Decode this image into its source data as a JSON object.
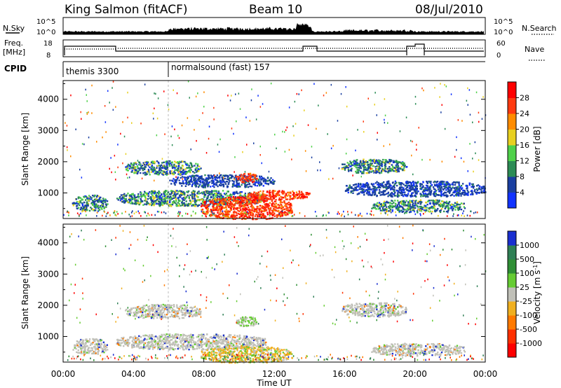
{
  "header": {
    "station": "King Salmon (fitACF)",
    "beam": "Beam 10",
    "date": "08/Jul/2010"
  },
  "panel_labels": {
    "nsky": "N.Sky",
    "freq_line1": "Freq.",
    "freq_line2": "[MHz]",
    "cpid": "CPID",
    "nsearch": "N.Search",
    "nave": "Nave"
  },
  "ticks": {
    "noise_left": [
      "10^5",
      "10^0"
    ],
    "noise_right": [
      "10^5",
      "10^0"
    ],
    "freq_left": [
      "18",
      "8"
    ],
    "nave_right": [
      "60",
      "0"
    ]
  },
  "cpid": {
    "prog1": "themis 3300",
    "prog2": "normalsound (fast) 157"
  },
  "chart_data": [
    {
      "type": "heatmap",
      "name": "power",
      "ylabel": "Slant Range [km]",
      "xlim": [
        "00:00",
        "24:00"
      ],
      "ylim": [
        180,
        4600
      ],
      "yticks": [
        "1000",
        "2000",
        "3000",
        "4000"
      ],
      "colorbar": {
        "label": "Power [dB]",
        "ticks": [
          "4",
          "8",
          "12",
          "16",
          "20",
          "24",
          "28"
        ],
        "colors": [
          "#1133ff",
          "#1a3fa0",
          "#2c8c55",
          "#4fd14a",
          "#e8d020",
          "#ff8c00",
          "#ff3a10",
          "#ff0000"
        ]
      },
      "echo_regions": [
        {
          "t": [
            0.5,
            2.5
          ],
          "range": [
            450,
            950
          ],
          "level": "mid"
        },
        {
          "t": [
            3.5,
            7.8
          ],
          "range": [
            1600,
            2050
          ],
          "level": "mid"
        },
        {
          "t": [
            3.0,
            11.5
          ],
          "range": [
            600,
            1100
          ],
          "level": "mid"
        },
        {
          "t": [
            6.0,
            12.0
          ],
          "range": [
            1200,
            1600
          ],
          "level": "low"
        },
        {
          "t": [
            7.8,
            13.0
          ],
          "range": [
            180,
            900
          ],
          "level": "high"
        },
        {
          "t": [
            9.8,
            11.0
          ],
          "range": [
            1350,
            1650
          ],
          "level": "high"
        },
        {
          "t": [
            10.5,
            14.0
          ],
          "range": [
            800,
            1100
          ],
          "level": "high"
        },
        {
          "t": [
            15.8,
            19.5
          ],
          "range": [
            1650,
            2100
          ],
          "level": "mid"
        },
        {
          "t": [
            16.0,
            24.0
          ],
          "range": [
            900,
            1400
          ],
          "level": "low"
        },
        {
          "t": [
            17.5,
            22.8
          ],
          "range": [
            400,
            800
          ],
          "level": "mid"
        }
      ]
    },
    {
      "type": "heatmap",
      "name": "velocity",
      "ylabel": "Slant Range [km]",
      "xlabel": "Time UT",
      "xlim": [
        "00:00",
        "24:00"
      ],
      "ylim": [
        180,
        4600
      ],
      "yticks": [
        "1000",
        "2000",
        "3000",
        "4000"
      ],
      "xticks": [
        "00:00",
        "04:00",
        "08:00",
        "12:00",
        "16:00",
        "20:00",
        "00:00"
      ],
      "colorbar": {
        "label": "Velocity [m s^-1]",
        "ticks": [
          "1000",
          "500",
          "100",
          "25",
          "-25",
          "-100",
          "-500",
          "-1000"
        ],
        "colors": [
          "#1a2fd0",
          "#2f7f55",
          "#2f8f35",
          "#66cc33",
          "#c0c0b8",
          "#f0b020",
          "#ff7a00",
          "#ff3000",
          "#ff0000"
        ]
      },
      "echo_regions": [
        {
          "t": [
            0.5,
            2.5
          ],
          "range": [
            450,
            950
          ],
          "level": "ground"
        },
        {
          "t": [
            3.5,
            7.8
          ],
          "range": [
            1600,
            2050
          ],
          "level": "ground"
        },
        {
          "t": [
            3.0,
            11.5
          ],
          "range": [
            600,
            1100
          ],
          "level": "ground"
        },
        {
          "t": [
            7.8,
            13.0
          ],
          "range": [
            180,
            700
          ],
          "level": "negative"
        },
        {
          "t": [
            9.8,
            11.0
          ],
          "range": [
            1350,
            1650
          ],
          "level": "positive"
        },
        {
          "t": [
            15.8,
            19.5
          ],
          "range": [
            1650,
            2100
          ],
          "level": "ground"
        },
        {
          "t": [
            17.5,
            22.8
          ],
          "range": [
            400,
            800
          ],
          "level": "ground"
        }
      ]
    }
  ],
  "xlabel": "Time UT"
}
